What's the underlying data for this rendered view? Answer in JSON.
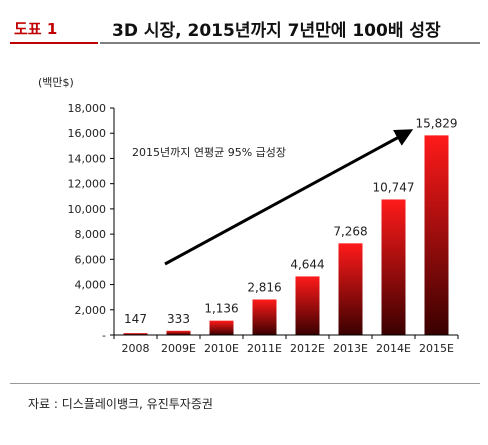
{
  "header": {
    "figure_label": "도표 1",
    "title": "3D 시장, 2015년까지 7년만에 100배 성장"
  },
  "footer": {
    "source": "자료 : 디스플레이뱅크, 유진투자증권"
  },
  "colors": {
    "accent": "#c00000",
    "bar_light": "#ff1a1a",
    "bar_dark": "#3a0000",
    "arrow": "#000000"
  },
  "chart_data": {
    "type": "bar",
    "unit_label": "(백만$)",
    "categories": [
      "2008",
      "2009E",
      "2010E",
      "2011E",
      "2012E",
      "2013E",
      "2014E",
      "2015E"
    ],
    "values": [
      147,
      333,
      1136,
      2816,
      4644,
      7268,
      10747,
      15829
    ],
    "data_labels": [
      "147",
      "333",
      "1,136",
      "2,816",
      "4,644",
      "7,268",
      "10,747",
      "15,829"
    ],
    "yticks": [
      "-",
      "2,000",
      "4,000",
      "6,000",
      "8,000",
      "10,000",
      "12,000",
      "14,000",
      "16,000",
      "18,000"
    ],
    "ylim": [
      0,
      18000
    ],
    "annotation": "2015년까지 연평균 95% 급성장",
    "trend_arrow": true,
    "grid": false,
    "legend": "none"
  }
}
